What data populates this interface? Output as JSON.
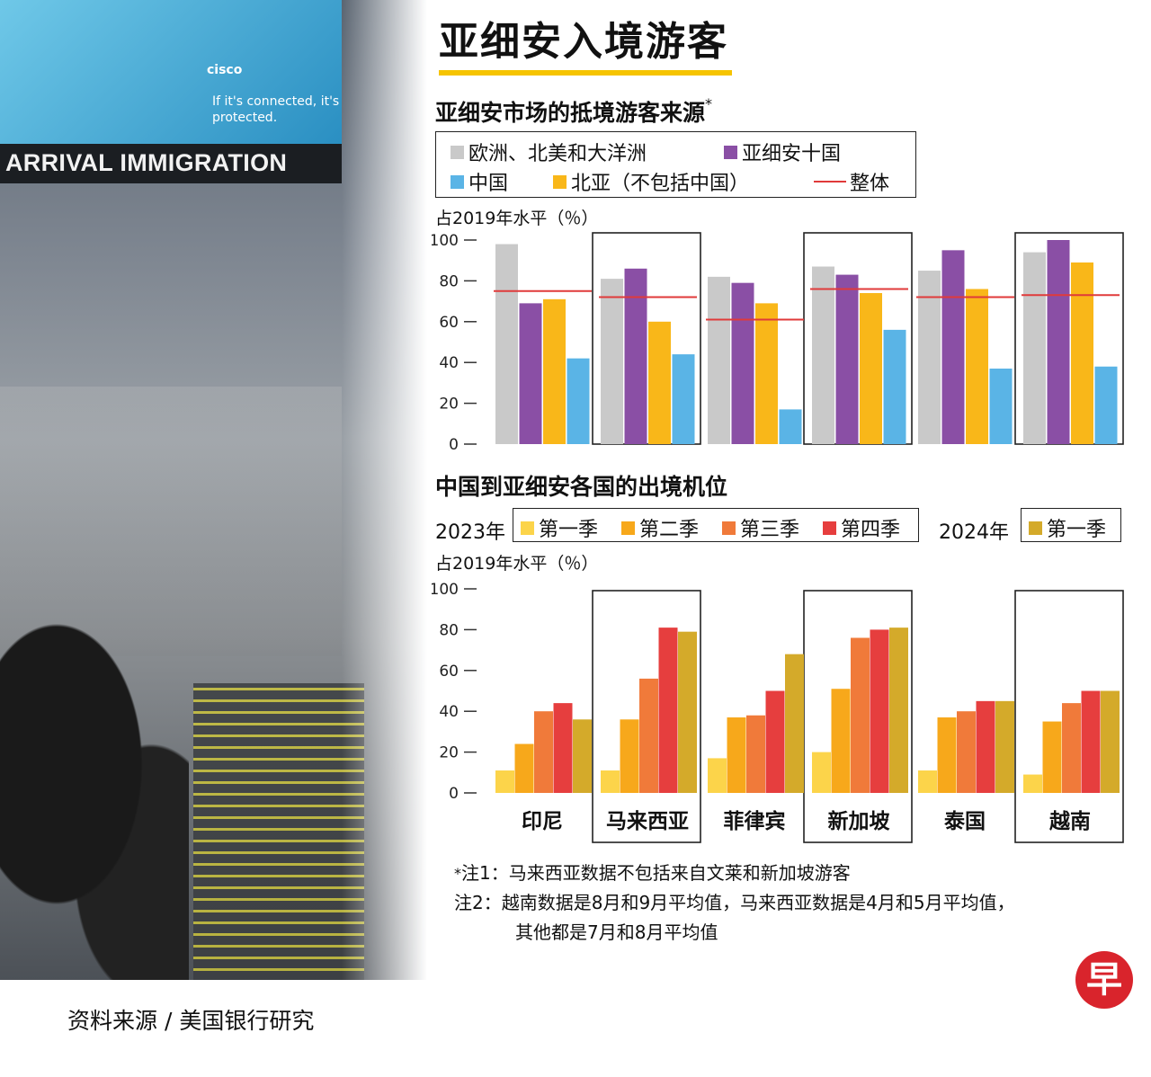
{
  "title": "亚细安入境游客",
  "photo": {
    "sign_text": "ARRIVAL IMMIGRATION",
    "brand": "cisco",
    "tagline": "If it's connected, it's protected."
  },
  "source": "资料来源 / 美国银行研究",
  "logo_char": "早",
  "colors": {
    "gray": "#c9c9c9",
    "purple": "#8a4fa5",
    "blue": "#5ab4e6",
    "yellow": "#f9b719",
    "red_line": "#e03a3a",
    "q1": "#fcd44a",
    "q2": "#f7a81b",
    "q3": "#f07a3a",
    "q4": "#e63e3e",
    "q2024": "#d4aa2a"
  },
  "chart_data": [
    {
      "type": "bar",
      "title": "亚细安市场的抵境游客来源",
      "title_mark": "*",
      "ylabel": "占2019年水平（％）",
      "ylim": [
        0,
        100
      ],
      "yticks": [
        "0",
        "20",
        "40",
        "60",
        "80",
        "100"
      ],
      "legend": [
        {
          "label": "欧洲、北美和大洋洲",
          "color": "#c9c9c9"
        },
        {
          "label": "亚细安十国",
          "color": "#8a4fa5"
        },
        {
          "label": "中国",
          "color": "#5ab4e6"
        },
        {
          "label": "北亚（不包括中国）",
          "color": "#f9b719"
        },
        {
          "label": "整体",
          "color": "#e03a3a",
          "kind": "line"
        }
      ],
      "categories": [
        "印尼",
        "马来西亚",
        "菲律宾",
        "新加坡",
        "泰国",
        "越南"
      ],
      "series": [
        {
          "name": "欧洲、北美和大洋洲",
          "values": [
            98,
            81,
            82,
            87,
            85,
            94
          ]
        },
        {
          "name": "亚细安十国",
          "values": [
            69,
            86,
            79,
            83,
            95,
            100
          ]
        },
        {
          "name": "北亚（不包括中国）",
          "values": [
            71,
            60,
            69,
            74,
            76,
            89
          ]
        },
        {
          "name": "中国",
          "values": [
            42,
            44,
            17,
            56,
            37,
            38
          ]
        }
      ],
      "overall": [
        75,
        72,
        61,
        76,
        72,
        73
      ]
    },
    {
      "type": "bar",
      "title": "中国到亚细安各国的出境机位",
      "ylabel": "占2019年水平（％）",
      "ylim": [
        0,
        100
      ],
      "yticks": [
        "0",
        "20",
        "40",
        "60",
        "80",
        "100"
      ],
      "legend_groups": [
        {
          "year": "2023年",
          "items": [
            {
              "label": "第一季",
              "color": "#fcd44a"
            },
            {
              "label": "第二季",
              "color": "#f7a81b"
            },
            {
              "label": "第三季",
              "color": "#f07a3a"
            },
            {
              "label": "第四季",
              "color": "#e63e3e"
            }
          ]
        },
        {
          "year": "2024年",
          "items": [
            {
              "label": "第一季",
              "color": "#d4aa2a"
            }
          ]
        }
      ],
      "categories": [
        "印尼",
        "马来西亚",
        "菲律宾",
        "新加坡",
        "泰国",
        "越南"
      ],
      "series": [
        {
          "name": "2023年 第一季",
          "values": [
            11,
            11,
            17,
            20,
            11,
            9
          ]
        },
        {
          "name": "2023年 第二季",
          "values": [
            24,
            36,
            37,
            51,
            37,
            35
          ]
        },
        {
          "name": "2023年 第三季",
          "values": [
            40,
            56,
            38,
            76,
            40,
            44
          ]
        },
        {
          "name": "2023年 第四季",
          "values": [
            44,
            81,
            50,
            80,
            45,
            50
          ]
        },
        {
          "name": "2024年 第一季",
          "values": [
            36,
            79,
            68,
            81,
            45,
            50
          ]
        }
      ]
    }
  ],
  "notes": {
    "note1_mark": "*",
    "note1": "注1：马来西亚数据不包括来自文莱和新加坡游客",
    "note2_line1": "注2：越南数据是8月和9月平均值，马来西亚数据是4月和5月平均值，",
    "note2_line2": "其他都是7月和8月平均值"
  }
}
